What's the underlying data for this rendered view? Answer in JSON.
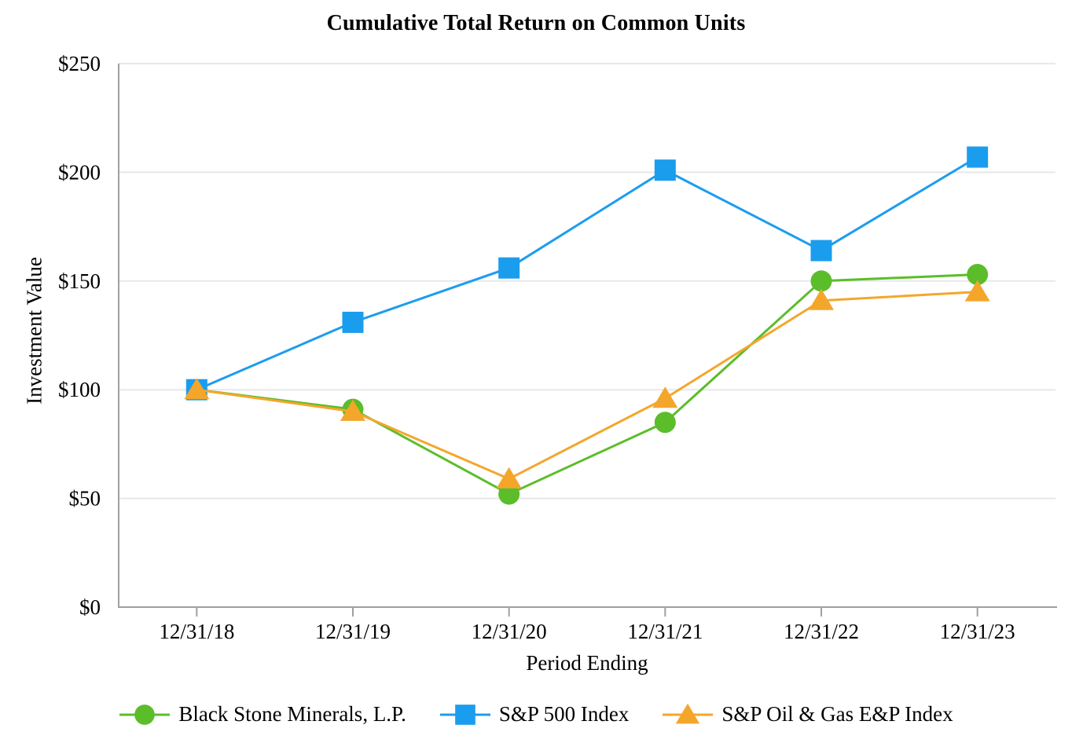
{
  "chart_data": {
    "type": "line",
    "title": "Cumulative Total Return on Common Units",
    "xlabel": "Period Ending",
    "ylabel": "Investment Value",
    "categories": [
      "12/31/18",
      "12/31/19",
      "12/31/20",
      "12/31/21",
      "12/31/22",
      "12/31/23"
    ],
    "ylim": [
      0,
      250
    ],
    "grid": true,
    "legend_position": "bottom",
    "yticks": [
      {
        "label": "$0",
        "value": 0
      },
      {
        "label": "$50",
        "value": 50
      },
      {
        "label": "$100",
        "value": 100
      },
      {
        "label": "$150",
        "value": 150
      },
      {
        "label": "$200",
        "value": 200
      },
      {
        "label": "$250",
        "value": 250
      }
    ],
    "series": [
      {
        "name": "Black Stone Minerals, L.P.",
        "marker": "circle",
        "color": "#5CBD2A",
        "values": [
          100,
          91,
          52,
          85,
          150,
          153
        ]
      },
      {
        "name": "S&P 500 Index",
        "marker": "square",
        "color": "#1B9DEE",
        "values": [
          100,
          131,
          156,
          201,
          164,
          207
        ]
      },
      {
        "name": "S&P Oil & Gas E&P Index",
        "marker": "triangle",
        "color": "#F4A62B",
        "values": [
          100,
          90,
          59,
          96,
          141,
          145
        ]
      }
    ]
  },
  "colors": {
    "grid": "#E8E8E8",
    "axis": "#A0A0A0",
    "text": "#000000",
    "background": "#FFFFFF"
  }
}
